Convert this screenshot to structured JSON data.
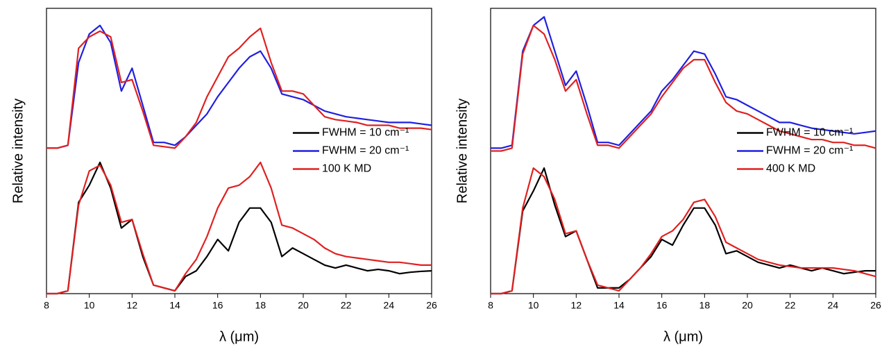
{
  "chart_data": [
    {
      "type": "line",
      "xlabel": "λ (μm)",
      "ylabel": "Relative intensity",
      "xlim": [
        8,
        26
      ],
      "xticks": [
        8,
        10,
        12,
        14,
        16,
        18,
        20,
        22,
        24,
        26
      ],
      "ylim": [
        0,
        1
      ],
      "legend": "center right",
      "x": [
        8,
        8.5,
        9,
        9.5,
        10,
        10.5,
        11,
        11.5,
        12,
        12.5,
        13,
        13.5,
        14,
        14.5,
        15,
        15.5,
        16,
        16.5,
        17,
        17.5,
        18,
        18.5,
        19,
        19.5,
        20,
        20.5,
        21,
        21.5,
        22,
        22.5,
        23,
        23.5,
        24,
        24.5,
        25,
        25.5,
        26
      ],
      "series": [
        {
          "name": "FWHM = 10 cm⁻¹",
          "color": "#000000",
          "values": [
            0,
            0,
            0.01,
            0.32,
            0.38,
            0.46,
            0.37,
            0.23,
            0.26,
            0.13,
            0.03,
            0.02,
            0.01,
            0.06,
            0.08,
            0.13,
            0.19,
            0.15,
            0.25,
            0.3,
            0.3,
            0.25,
            0.13,
            0.16,
            0.14,
            0.12,
            0.1,
            0.09,
            0.1,
            0.09,
            0.08,
            0.085,
            0.08,
            0.07,
            0.075,
            0.078,
            0.08
          ]
        },
        {
          "name": "FWHM = 20 cm⁻¹",
          "color": "#1f1fe0",
          "values": [
            0.51,
            0.51,
            0.52,
            0.81,
            0.91,
            0.94,
            0.88,
            0.71,
            0.79,
            0.66,
            0.53,
            0.53,
            0.52,
            0.55,
            0.59,
            0.63,
            0.69,
            0.74,
            0.79,
            0.83,
            0.85,
            0.79,
            0.7,
            0.69,
            0.68,
            0.66,
            0.64,
            0.63,
            0.62,
            0.615,
            0.61,
            0.605,
            0.6,
            0.6,
            0.6,
            0.595,
            0.59
          ]
        },
        {
          "name": "100 K MD",
          "color": "#e02020",
          "values": [
            0.51,
            0.51,
            0.52,
            0.86,
            0.9,
            0.92,
            0.9,
            0.74,
            0.75,
            0.64,
            0.52,
            0.515,
            0.51,
            0.55,
            0.6,
            0.69,
            0.76,
            0.83,
            0.86,
            0.9,
            0.93,
            0.81,
            0.71,
            0.71,
            0.7,
            0.66,
            0.62,
            0.61,
            0.605,
            0.6,
            0.59,
            0.59,
            0.59,
            0.58,
            0.58,
            0.58,
            0.575
          ]
        },
        {
          "color": "#e02020",
          "values": [
            0,
            0,
            0.01,
            0.31,
            0.43,
            0.45,
            0.38,
            0.25,
            0.26,
            0.14,
            0.03,
            0.02,
            0.01,
            0.07,
            0.12,
            0.2,
            0.3,
            0.37,
            0.38,
            0.41,
            0.46,
            0.37,
            0.24,
            0.23,
            0.21,
            0.19,
            0.16,
            0.14,
            0.13,
            0.125,
            0.12,
            0.115,
            0.11,
            0.11,
            0.105,
            0.1,
            0.1
          ]
        }
      ]
    },
    {
      "type": "line",
      "xlabel": "λ (μm)",
      "ylabel": "Relative intensity",
      "xlim": [
        8,
        26
      ],
      "xticks": [
        8,
        10,
        12,
        14,
        16,
        18,
        20,
        22,
        24,
        26
      ],
      "ylim": [
        0,
        1
      ],
      "legend": "center right",
      "x": [
        8,
        8.5,
        9,
        9.5,
        10,
        10.5,
        11,
        11.5,
        12,
        12.5,
        13,
        13.5,
        14,
        14.5,
        15,
        15.5,
        16,
        16.5,
        17,
        17.5,
        18,
        18.5,
        19,
        19.5,
        20,
        20.5,
        21,
        21.5,
        22,
        22.5,
        23,
        23.5,
        24,
        24.5,
        25,
        25.5,
        26
      ],
      "series": [
        {
          "name": "FWHM = 10 cm⁻¹",
          "color": "#000000",
          "values": [
            0,
            0,
            0.01,
            0.29,
            0.36,
            0.44,
            0.31,
            0.2,
            0.22,
            0.12,
            0.02,
            0.02,
            0.02,
            0.05,
            0.09,
            0.13,
            0.19,
            0.17,
            0.24,
            0.3,
            0.3,
            0.24,
            0.14,
            0.15,
            0.13,
            0.11,
            0.1,
            0.09,
            0.1,
            0.09,
            0.08,
            0.09,
            0.08,
            0.07,
            0.075,
            0.08,
            0.08
          ]
        },
        {
          "name": "FWHM = 20 cm⁻¹",
          "color": "#1f1fe0",
          "values": [
            0.51,
            0.51,
            0.52,
            0.85,
            0.94,
            0.97,
            0.85,
            0.73,
            0.78,
            0.66,
            0.53,
            0.53,
            0.52,
            0.56,
            0.6,
            0.64,
            0.71,
            0.75,
            0.8,
            0.85,
            0.84,
            0.77,
            0.69,
            0.68,
            0.66,
            0.64,
            0.62,
            0.6,
            0.6,
            0.59,
            0.58,
            0.575,
            0.57,
            0.565,
            0.56,
            0.565,
            0.57
          ]
        },
        {
          "name": "400 K MD",
          "color": "#e02020",
          "values": [
            0.5,
            0.5,
            0.51,
            0.84,
            0.94,
            0.91,
            0.82,
            0.71,
            0.75,
            0.63,
            0.52,
            0.52,
            0.51,
            0.55,
            0.59,
            0.63,
            0.69,
            0.74,
            0.79,
            0.82,
            0.82,
            0.74,
            0.67,
            0.64,
            0.63,
            0.61,
            0.59,
            0.57,
            0.56,
            0.55,
            0.54,
            0.54,
            0.53,
            0.53,
            0.52,
            0.52,
            0.51
          ]
        },
        {
          "color": "#e02020",
          "values": [
            0,
            0,
            0.01,
            0.3,
            0.44,
            0.41,
            0.33,
            0.21,
            0.22,
            0.12,
            0.03,
            0.02,
            0.01,
            0.05,
            0.09,
            0.14,
            0.2,
            0.22,
            0.26,
            0.32,
            0.33,
            0.27,
            0.18,
            0.16,
            0.14,
            0.12,
            0.11,
            0.1,
            0.095,
            0.09,
            0.09,
            0.09,
            0.09,
            0.085,
            0.08,
            0.07,
            0.06
          ]
        }
      ]
    }
  ]
}
